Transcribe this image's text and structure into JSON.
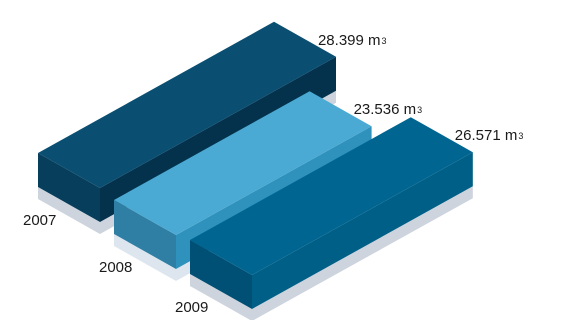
{
  "chart_data": {
    "type": "bar",
    "style": "3d-isometric-blocks",
    "categories": [
      "2007",
      "2008",
      "2009"
    ],
    "values": [
      28399,
      23536,
      26571
    ],
    "value_labels": [
      {
        "number": "28.399",
        "unit_base": "m",
        "unit_sup": "3"
      },
      {
        "number": "23.536",
        "unit_base": "m",
        "unit_sup": "3"
      },
      {
        "number": "26.571",
        "unit_base": "m",
        "unit_sup": "3"
      }
    ],
    "unit": "m³",
    "grid": false,
    "legend": "none",
    "colors": {
      "2007": {
        "top": "#0a4f72",
        "front": "#063e5c",
        "side": "#04324c",
        "shadow": "#cdd4de"
      },
      "2008": {
        "top": "#4aaad3",
        "front": "#2f7ea4",
        "side": "#2f92bd",
        "shadow": "#dde6ee"
      },
      "2009": {
        "top": "#006691",
        "front": "#004f74",
        "side": "#005f87",
        "shadow": "#cdd4de"
      }
    }
  }
}
